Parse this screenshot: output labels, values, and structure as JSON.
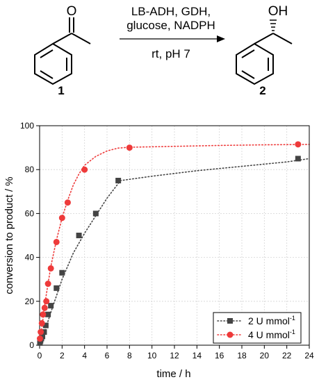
{
  "scheme": {
    "conditions_line1": "LB-ADH, GDH,",
    "conditions_line2": "glucose, NADPH",
    "conditions_line3": "rt, pH 7",
    "reactant_label": "1",
    "product_label": "2",
    "oxygen_label": "O",
    "hydroxyl_label": "OH"
  },
  "chart_data": {
    "type": "scatter",
    "xlabel": "time / h",
    "ylabel": "conversion to product / %",
    "xlim": [
      0,
      24
    ],
    "ylim": [
      0,
      100
    ],
    "x_ticks": [
      0,
      2,
      4,
      6,
      8,
      10,
      12,
      14,
      16,
      18,
      20,
      22,
      24
    ],
    "y_ticks": [
      0,
      20,
      40,
      60,
      80,
      100
    ],
    "grid": true,
    "legend_position": "bottom-right",
    "series": [
      {
        "name": "2 U mmol",
        "name_superscript": "-1",
        "marker": "square",
        "color": "#444444",
        "line_style": "dotted",
        "x": [
          0.03,
          0.08,
          0.15,
          0.25,
          0.4,
          0.55,
          0.75,
          1.0,
          1.5,
          2.0,
          3.5,
          5.0,
          7.0,
          23.0
        ],
        "y": [
          1,
          2,
          3,
          4,
          6,
          9,
          14,
          18,
          26,
          33,
          50,
          60,
          75,
          85
        ],
        "fit_x": [
          0,
          0.5,
          1,
          2,
          3,
          4,
          5,
          6,
          7.2,
          10,
          14,
          18,
          22,
          24
        ],
        "fit_y": [
          0,
          7,
          15,
          30,
          42,
          51,
          59,
          67,
          75,
          77,
          79.5,
          81.5,
          83.5,
          85
        ]
      },
      {
        "name": "4 U mmol",
        "name_superscript": "-1",
        "marker": "circle",
        "color": "#ee3a3a",
        "line_style": "dotted",
        "x": [
          0.03,
          0.1,
          0.2,
          0.3,
          0.45,
          0.6,
          0.75,
          1.0,
          1.5,
          2.0,
          2.5,
          4.0,
          8.0,
          23.0
        ],
        "y": [
          3,
          6,
          10,
          14,
          17,
          20,
          28,
          35,
          47,
          58,
          65,
          80,
          90,
          91.5
        ],
        "fit_x": [
          0,
          0.5,
          1,
          1.5,
          2,
          2.5,
          3,
          3.5,
          4,
          5,
          6,
          7,
          8,
          12,
          16,
          20,
          24
        ],
        "fit_y": [
          0,
          20,
          36,
          48,
          58,
          66,
          73,
          78,
          82,
          86,
          88.5,
          89.8,
          90.2,
          90.6,
          91,
          91.3,
          91.5
        ]
      }
    ]
  }
}
